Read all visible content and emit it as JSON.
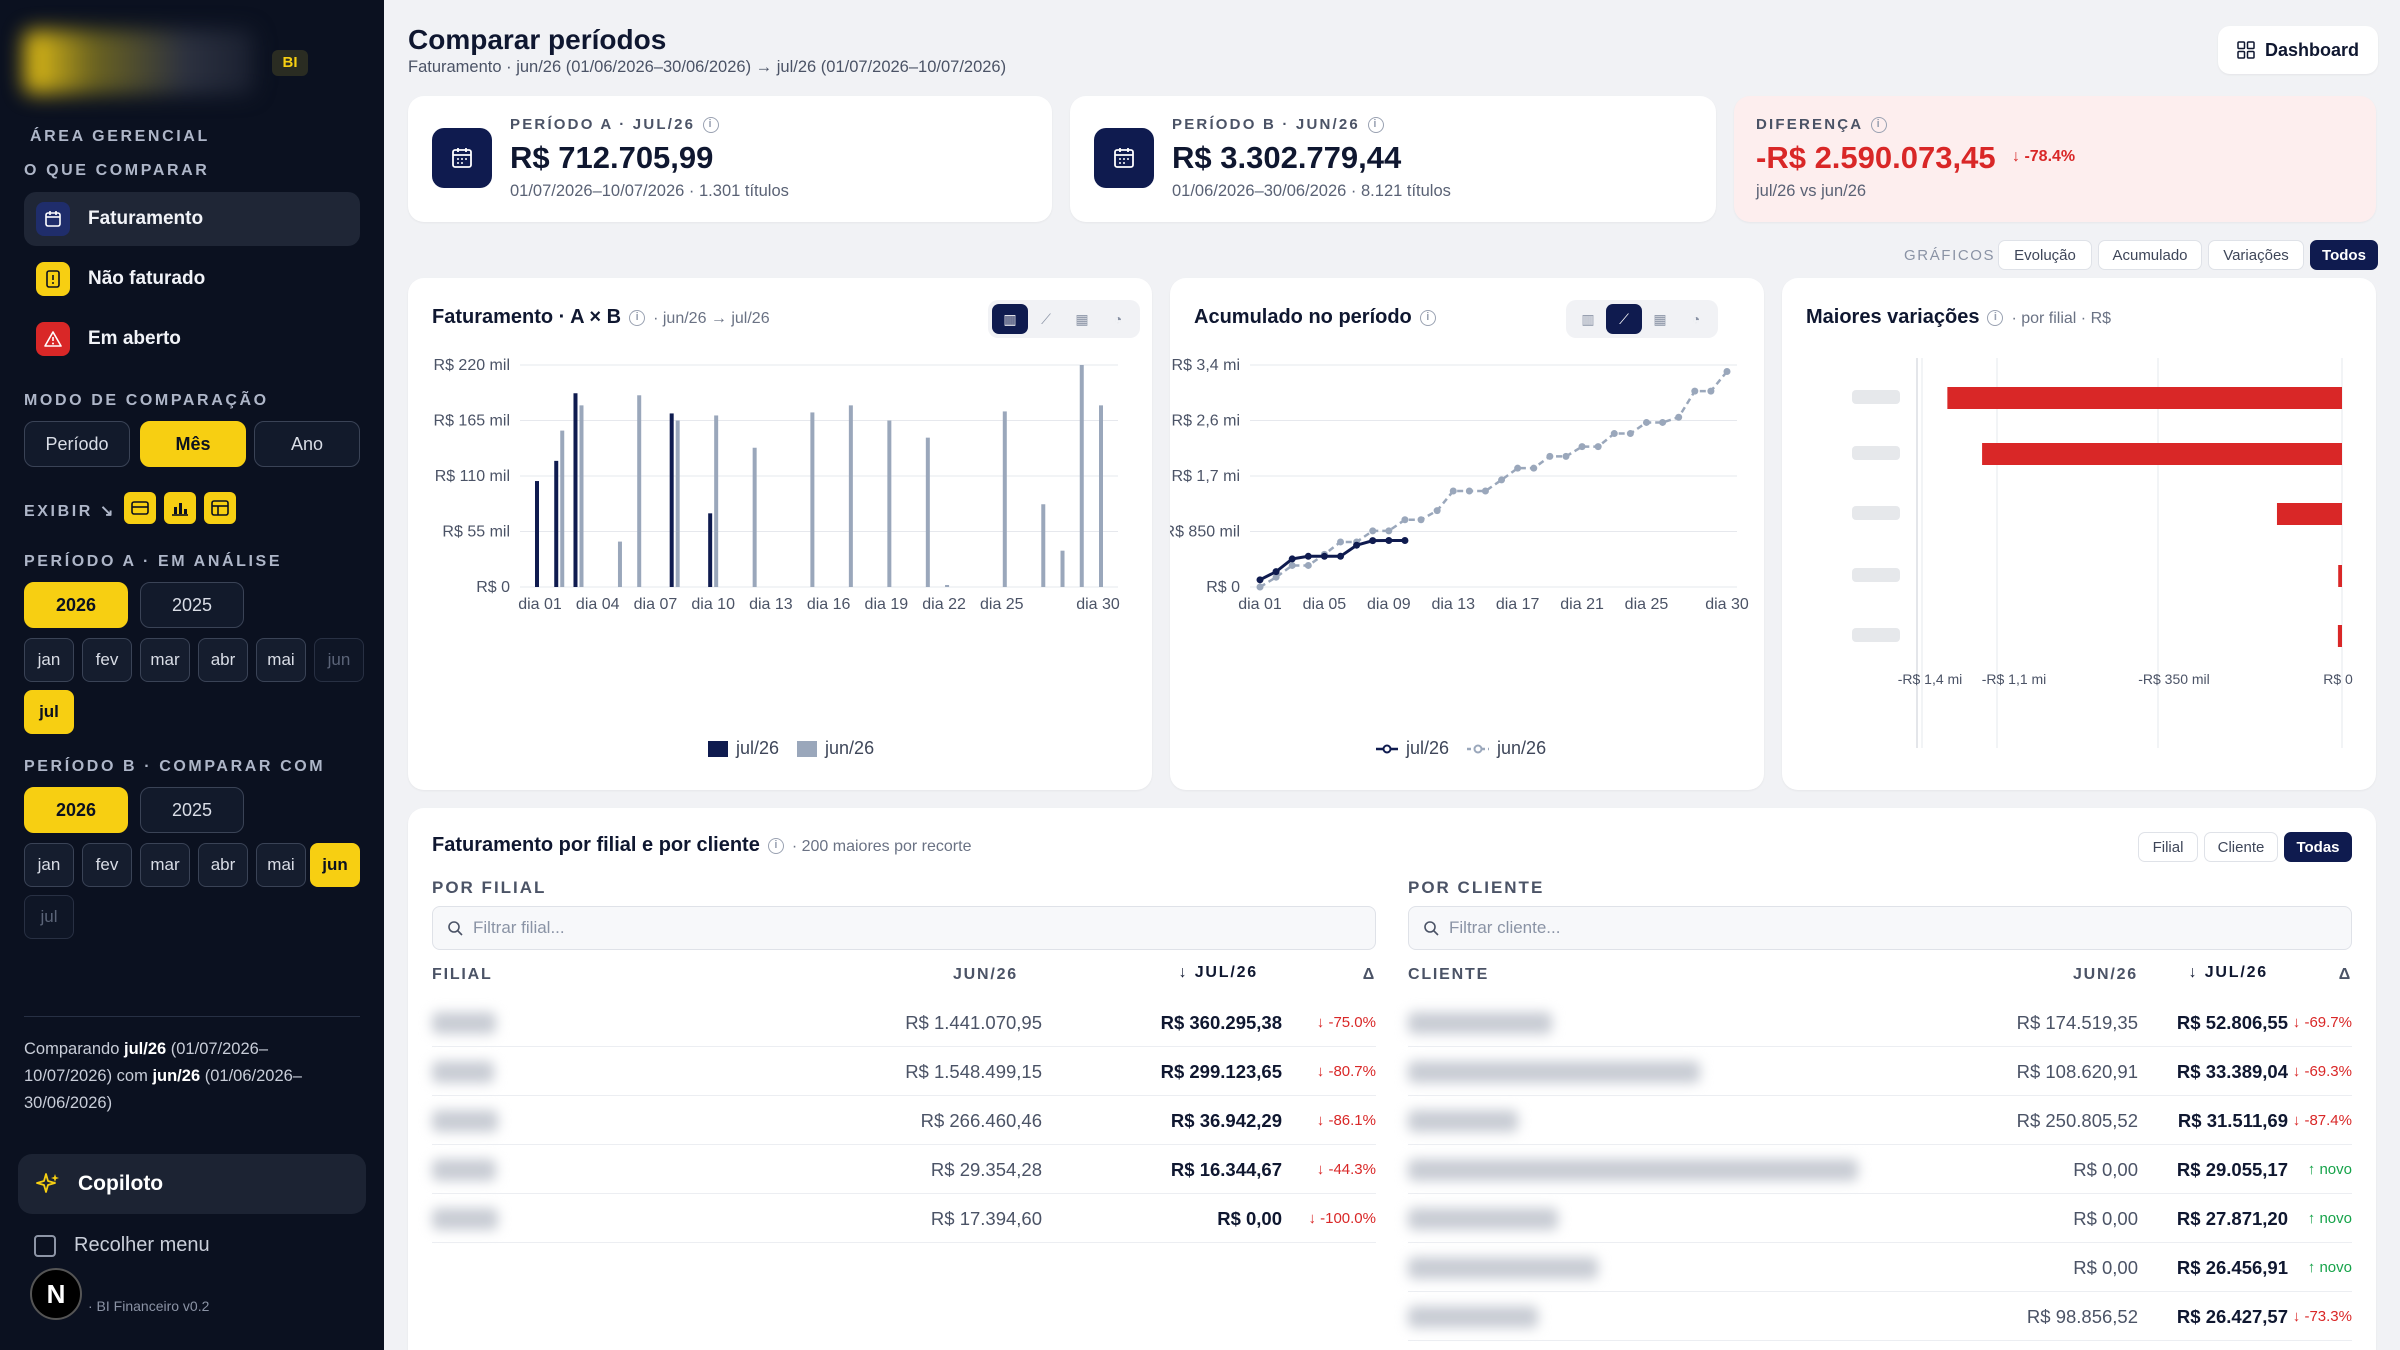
{
  "sidebar": {
    "badge": "BI",
    "area_label": "ÁREA GERENCIAL",
    "compare_label": "O QUE COMPARAR",
    "nav": [
      {
        "label": "Faturamento",
        "icon": "calendar-icon"
      },
      {
        "label": "Não faturado",
        "icon": "document-icon"
      },
      {
        "label": "Em aberto",
        "icon": "warning-icon"
      }
    ],
    "mode_label": "MODO DE COMPARAÇÃO",
    "modes": [
      "Período",
      "Mês",
      "Ano"
    ],
    "active_mode": "Mês",
    "exibir_label": "EXIBIR",
    "period_a_label": "PERÍODO A · EM ANÁLISE",
    "period_b_label": "PERÍODO B · COMPARAR COM",
    "years": [
      "2026",
      "2025"
    ],
    "months_a": [
      "jan",
      "fev",
      "mar",
      "abr",
      "mai",
      "jun",
      "jul"
    ],
    "months_b": [
      "jan",
      "fev",
      "mar",
      "abr",
      "mai",
      "jun",
      "jul"
    ],
    "comparing_prefix": "Comparando",
    "comparing_a": "jul/26",
    "comparing_a_range": "(01/07/2026–10/07/2026)",
    "comparing_mid": "com",
    "comparing_b": "jun/26",
    "comparing_b_range": "(01/06/2026–30/06/2026)",
    "copilot": "Copiloto",
    "collapse": "Recolher menu",
    "version": "· BI Financeiro v0.2",
    "avatar_letter": "N"
  },
  "header": {
    "title": "Comparar períodos",
    "subtitle": "Faturamento · jun/26 (01/06/2026–30/06/2026) → jul/26 (01/07/2026–10/07/2026)",
    "dashboard": "Dashboard"
  },
  "kpis": {
    "a": {
      "label": "PERÍODO A · JUL/26",
      "value": "R$ 712.705,99",
      "sub": "01/07/2026–10/07/2026 · 1.301 títulos"
    },
    "b": {
      "label": "PERÍODO B · JUN/26",
      "value": "R$ 3.302.779,44",
      "sub": "01/06/2026–30/06/2026 · 8.121 títulos"
    },
    "diff": {
      "label": "DIFERENÇA",
      "value": "-R$ 2.590.073,45",
      "pct": "↓ -78.4%",
      "sub": "jul/26 vs jun/26"
    }
  },
  "graphs_toggle": {
    "label": "GRÁFICOS",
    "options": [
      "Evolução",
      "Acumulado",
      "Variações",
      "Todos"
    ],
    "active": "Todos"
  },
  "colors": {
    "navy": "#0f1b4f",
    "gray_series": "#9aa7bb",
    "red": "#d92727",
    "yellow": "#f7cf12"
  },
  "chart_data": [
    {
      "type": "bar",
      "title": "Faturamento · A × B",
      "subtitle": "· jun/26 → jul/26",
      "x_ticks": [
        "dia 01",
        "dia 04",
        "dia 07",
        "dia 10",
        "dia 13",
        "dia 16",
        "dia 19",
        "dia 22",
        "dia 25",
        "dia 30"
      ],
      "y_ticks": [
        "R$ 0",
        "R$ 55 mil",
        "R$ 110 mil",
        "R$ 165 mil",
        "R$ 220 mil"
      ],
      "ylim": [
        0,
        220000
      ],
      "series": [
        {
          "name": "jul/26",
          "color": "#0f1b4f",
          "x": [
            1,
            2,
            3,
            4,
            5,
            6,
            7,
            8,
            9,
            10
          ],
          "values": [
            105000,
            125000,
            192000,
            0,
            0,
            0,
            0,
            172000,
            0,
            73000
          ]
        },
        {
          "name": "jun/26",
          "color": "#9aa7bb",
          "x": [
            1,
            2,
            3,
            4,
            5,
            6,
            7,
            8,
            9,
            10,
            11,
            12,
            13,
            14,
            15,
            16,
            17,
            18,
            19,
            20,
            21,
            22,
            23,
            24,
            25,
            26,
            27,
            28,
            29,
            30
          ],
          "values": [
            0,
            155000,
            180000,
            0,
            45000,
            190000,
            0,
            165000,
            0,
            170000,
            0,
            138000,
            0,
            0,
            173000,
            0,
            180000,
            0,
            165000,
            0,
            148000,
            2000,
            0,
            0,
            174000,
            0,
            82000,
            36000,
            220000,
            180000
          ]
        }
      ],
      "legend": "bottom"
    },
    {
      "type": "line",
      "title": "Acumulado no período",
      "x_ticks": [
        "dia 01",
        "dia 05",
        "dia 09",
        "dia 13",
        "dia 17",
        "dia 21",
        "dia 25",
        "dia 30"
      ],
      "y_ticks": [
        "R$ 0",
        "R$ 850 mil",
        "R$ 1,7 mi",
        "R$ 2,6 mi",
        "R$ 3,4 mi"
      ],
      "ylim": [
        0,
        3400000
      ],
      "series": [
        {
          "name": "jul/26",
          "color": "#0f1b4f",
          "x": [
            1,
            2,
            3,
            4,
            5,
            6,
            7,
            8,
            9,
            10
          ],
          "values": [
            110000,
            235000,
            430000,
            470000,
            470000,
            470000,
            640000,
            710000,
            712706,
            712706
          ]
        },
        {
          "name": "jun/26",
          "color": "#9aa7bb",
          "x": [
            1,
            2,
            3,
            4,
            5,
            6,
            7,
            8,
            9,
            10,
            11,
            12,
            13,
            14,
            15,
            16,
            17,
            18,
            19,
            20,
            21,
            22,
            23,
            24,
            25,
            26,
            27,
            28,
            29,
            30
          ],
          "values": [
            0,
            150000,
            330000,
            330000,
            500000,
            690000,
            690000,
            860000,
            860000,
            1030000,
            1030000,
            1170000,
            1470000,
            1470000,
            1470000,
            1640000,
            1820000,
            1820000,
            2000000,
            2000000,
            2150000,
            2150000,
            2350000,
            2350000,
            2520000,
            2520000,
            2600000,
            3000000,
            3000000,
            3300000
          ]
        }
      ],
      "legend": "bottom"
    },
    {
      "type": "bar",
      "orientation": "horizontal",
      "title": "Maiores variações",
      "subtitle": "· por filial · R$",
      "x_ticks": [
        "-R$ 1,4 mi",
        "-R$ 1,1 mi",
        "-R$ 350 mil",
        "R$ 0"
      ],
      "values": [
        -1250000,
        -1140000,
        -206000,
        -12000,
        -13000
      ],
      "color": "#d92727"
    }
  ],
  "table_section": {
    "title": "Faturamento por filial e por cliente",
    "subtitle": "· 200 maiores por recorte",
    "toggles": [
      "Filial",
      "Cliente",
      "Todas"
    ],
    "active": "Todas",
    "filial": {
      "heading": "POR FILIAL",
      "placeholder": "Filtrar filial...",
      "cols": [
        "FILIAL",
        "JUN/26",
        "↓ JUL/26",
        "Δ"
      ],
      "rows": [
        {
          "prev": "R$ 1.441.070,95",
          "cur": "R$ 360.295,38",
          "delta": "↓ -75.0%",
          "dir": "neg"
        },
        {
          "prev": "R$ 1.548.499,15",
          "cur": "R$ 299.123,65",
          "delta": "↓ -80.7%",
          "dir": "neg"
        },
        {
          "prev": "R$ 266.460,46",
          "cur": "R$ 36.942,29",
          "delta": "↓ -86.1%",
          "dir": "neg"
        },
        {
          "prev": "R$ 29.354,28",
          "cur": "R$ 16.344,67",
          "delta": "↓ -44.3%",
          "dir": "neg"
        },
        {
          "prev": "R$ 17.394,60",
          "cur": "R$ 0,00",
          "delta": "↓ -100.0%",
          "dir": "neg"
        }
      ]
    },
    "cliente": {
      "heading": "POR CLIENTE",
      "placeholder": "Filtrar cliente...",
      "cols": [
        "CLIENTE",
        "JUN/26",
        "↓ JUL/26",
        "Δ"
      ],
      "rows": [
        {
          "prev": "R$ 174.519,35",
          "cur": "R$ 52.806,55",
          "delta": "↓ -69.7%",
          "dir": "neg"
        },
        {
          "prev": "R$ 108.620,91",
          "cur": "R$ 33.389,04",
          "delta": "↓ -69.3%",
          "dir": "neg"
        },
        {
          "prev": "R$ 250.805,52",
          "cur": "R$ 31.511,69",
          "delta": "↓ -87.4%",
          "dir": "neg"
        },
        {
          "prev": "R$ 0,00",
          "cur": "R$ 29.055,17",
          "delta": "↑ novo",
          "dir": "pos"
        },
        {
          "prev": "R$ 0,00",
          "cur": "R$ 27.871,20",
          "delta": "↑ novo",
          "dir": "pos"
        },
        {
          "prev": "R$ 0,00",
          "cur": "R$ 26.456,91",
          "delta": "↑ novo",
          "dir": "pos"
        },
        {
          "prev": "R$ 98.856,52",
          "cur": "R$ 26.427,57",
          "delta": "↓ -73.3%",
          "dir": "neg"
        }
      ]
    }
  }
}
